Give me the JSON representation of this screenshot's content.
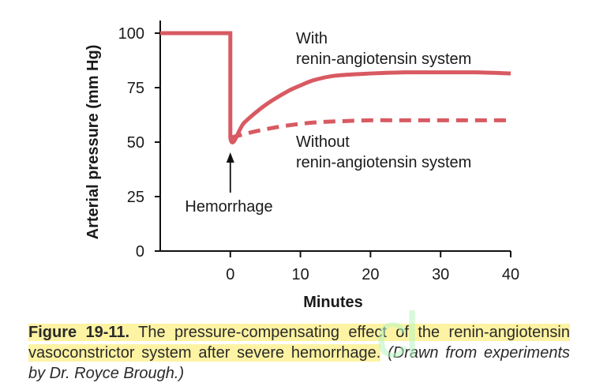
{
  "chart_data": {
    "type": "line",
    "ylabel": "Arterial pressure (mm Hg)",
    "xlabel": "Minutes",
    "xlim": [
      -10,
      40
    ],
    "ylim": [
      0,
      100
    ],
    "xticks": [
      0,
      10,
      20,
      30,
      40
    ],
    "yticks": [
      0,
      25,
      50,
      75,
      100
    ],
    "grid": false,
    "series": [
      {
        "name": "With renin-angiotensin system",
        "style": "solid",
        "color": "#d85a62",
        "x": [
          -10,
          0,
          0,
          2,
          5,
          8,
          10,
          12,
          15,
          20,
          25,
          30,
          35,
          40
        ],
        "y": [
          100,
          100,
          52,
          59,
          67,
          73,
          76,
          78.5,
          80.5,
          81.5,
          82,
          82,
          82,
          81.5
        ]
      },
      {
        "name": "Without renin-angiotensin system",
        "style": "dashed",
        "color": "#d85a62",
        "x": [
          0,
          3,
          6,
          9,
          12,
          15,
          20,
          25,
          30,
          35,
          40
        ],
        "y": [
          52,
          54.5,
          56.5,
          58,
          59,
          59.5,
          60,
          60,
          60,
          60,
          60
        ]
      }
    ],
    "annotations": [
      {
        "id": "with",
        "lines": [
          "With",
          "renin-angiotensin system"
        ]
      },
      {
        "id": "without",
        "lines": [
          "Without",
          "renin-angiotensin system"
        ]
      },
      {
        "id": "hemorrhage",
        "lines": [
          "Hemorrhage"
        ]
      }
    ]
  },
  "caption": {
    "label": "Figure 19-11.",
    "text": " The pressure-compensating effect of the renin-angiotensin vasoconstrictor system after severe hemorrhage.",
    "source": " (Drawn from experiments by Dr. Royce Brough.)"
  },
  "watermark": "cl"
}
